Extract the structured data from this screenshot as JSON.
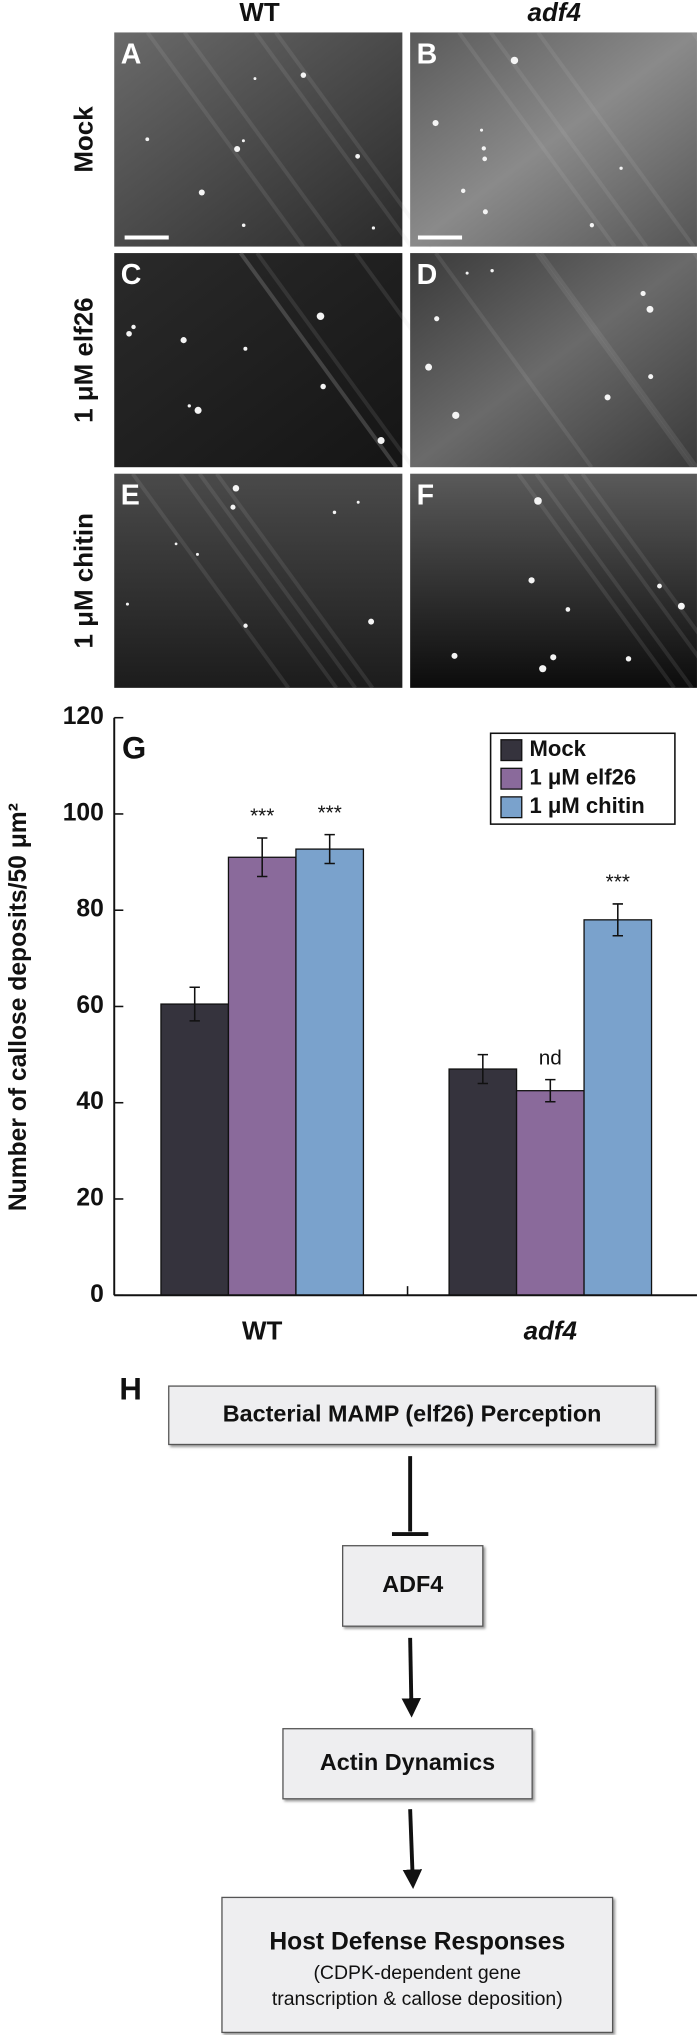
{
  "figure": {
    "column_headers": [
      "WT",
      "adf4"
    ],
    "row_labels": [
      "Mock",
      "1 μM elf26",
      "1 μM chitin"
    ],
    "panel_letters": [
      "A",
      "B",
      "C",
      "D",
      "E",
      "F"
    ]
  },
  "chart_data": {
    "type": "bar",
    "panel_letter": "G",
    "y_label": "Number of callose deposits/50 μm²",
    "categories": [
      "WT",
      "adf4"
    ],
    "series": [
      {
        "name": "Mock",
        "color": "#35333d",
        "values": [
          60.5,
          47
        ],
        "errors": [
          3.5,
          3
        ]
      },
      {
        "name": "1 μM elf26",
        "color": "#8a6a9b",
        "values": [
          91,
          42.5
        ],
        "errors": [
          4,
          2.3
        ],
        "annotations": [
          "***",
          "nd"
        ]
      },
      {
        "name": "1 μM chitin",
        "color": "#7aa2cc",
        "values": [
          92.7,
          78
        ],
        "errors": [
          3,
          3.3
        ],
        "annotations": [
          "***",
          "***"
        ]
      }
    ],
    "ylim": [
      0,
      120
    ],
    "yticks": [
      0,
      20,
      40,
      60,
      80,
      100,
      120
    ],
    "legend": "top-right"
  },
  "diagram": {
    "panel_letter": "H",
    "nodes": [
      {
        "label": "Bacterial MAMP (elf26) Perception"
      },
      {
        "label": "ADF4"
      },
      {
        "label": "Actin Dynamics"
      },
      {
        "label": "Host Defense Responses",
        "detail": [
          "(CDPK-dependent gene",
          "transcription & callose deposition)"
        ]
      }
    ]
  }
}
